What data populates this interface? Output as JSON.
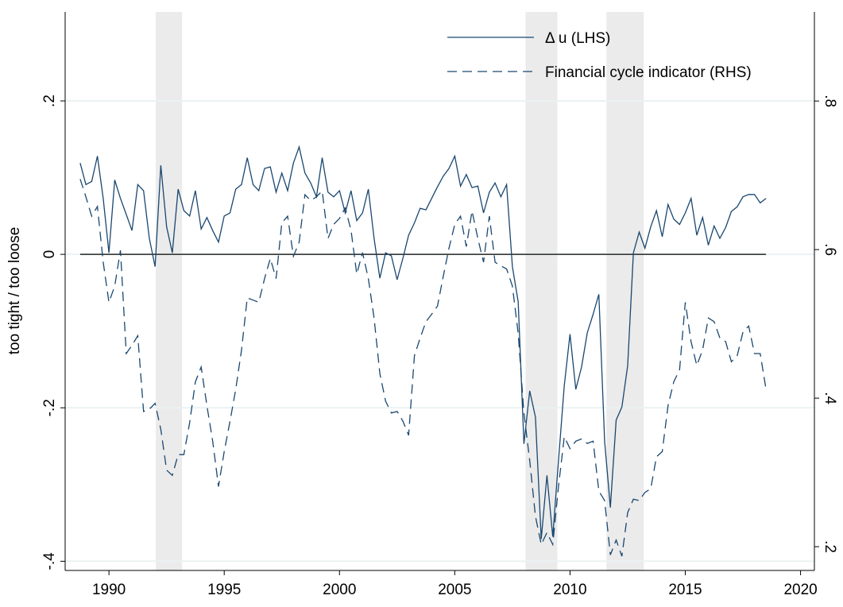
{
  "chart_data": {
    "type": "line",
    "ylabel": "too tight / too loose",
    "xlim": [
      1988.1,
      2020.6
    ],
    "xticks": [
      1990,
      1995,
      2000,
      2005,
      2010,
      2015,
      2020
    ],
    "ylim": [
      -0.412,
      0.316
    ],
    "yticks": [
      {
        "value": -0.4,
        "label": "-.4"
      },
      {
        "value": -0.2,
        "label": "-.2"
      },
      0,
      {
        "value": 0.2,
        "label": ".2"
      }
    ],
    "y2lim": [
      0.168,
      0.92
    ],
    "y2ticks": [
      {
        "value": 0.2,
        "label": ".2"
      },
      {
        "value": 0.4,
        "label": ".4"
      },
      {
        "value": 0.6,
        "label": ".6"
      },
      {
        "value": 0.8,
        "label": ".8"
      }
    ],
    "grid": true,
    "legend": "top-right",
    "shaded_periods": [
      [
        1992.03,
        1993.17
      ],
      [
        2008.07,
        2009.45
      ],
      [
        2011.58,
        2013.2
      ]
    ],
    "shade_color": "#ebebeb",
    "x": [
      1988.75,
      1989,
      1989.25,
      1989.5,
      1989.75,
      1990,
      1990.25,
      1990.5,
      1990.75,
      1991,
      1991.25,
      1991.5,
      1991.75,
      1992,
      1992.25,
      1992.5,
      1992.75,
      1993,
      1993.25,
      1993.5,
      1993.75,
      1994,
      1994.25,
      1994.5,
      1994.75,
      1995,
      1995.25,
      1995.5,
      1995.75,
      1996,
      1996.25,
      1996.5,
      1996.75,
      1997,
      1997.25,
      1997.5,
      1997.75,
      1998,
      1998.25,
      1998.5,
      1998.75,
      1999,
      1999.25,
      1999.5,
      1999.75,
      2000,
      2000.25,
      2000.5,
      2000.75,
      2001,
      2001.25,
      2001.5,
      2001.75,
      2002,
      2002.25,
      2002.5,
      2002.75,
      2003,
      2003.25,
      2003.5,
      2003.75,
      2004,
      2004.25,
      2004.5,
      2004.75,
      2005,
      2005.25,
      2005.5,
      2005.75,
      2006,
      2006.25,
      2006.5,
      2006.75,
      2007,
      2007.25,
      2007.5,
      2007.75,
      2008,
      2008.25,
      2008.5,
      2008.75,
      2009,
      2009.25,
      2009.5,
      2009.75,
      2010,
      2010.25,
      2010.5,
      2010.75,
      2011,
      2011.25,
      2011.5,
      2011.75,
      2012,
      2012.25,
      2012.5,
      2012.75,
      2013,
      2013.25,
      2013.5,
      2013.75,
      2014,
      2014.25,
      2014.5,
      2014.75,
      2015,
      2015.25,
      2015.5,
      2015.75,
      2016,
      2016.25,
      2016.5,
      2016.75,
      2017,
      2017.25,
      2017.5,
      2017.75,
      2018,
      2018.25,
      2018.5
    ],
    "series": [
      {
        "name": "Δ u (LHS)",
        "color": "#1a476f",
        "dash": false,
        "values": [
          0.119,
          0.091,
          0.095,
          0.128,
          0.073,
          0.002,
          0.097,
          0.073,
          0.052,
          0.031,
          0.091,
          0.083,
          0.021,
          -0.016,
          0.116,
          0.036,
          0.002,
          0.085,
          0.057,
          0.05,
          0.083,
          0.033,
          0.048,
          0.031,
          0.016,
          0.05,
          0.054,
          0.085,
          0.091,
          0.126,
          0.091,
          0.083,
          0.112,
          0.114,
          0.081,
          0.106,
          0.083,
          0.119,
          0.14,
          0.106,
          0.093,
          0.075,
          0.126,
          0.081,
          0.075,
          0.083,
          0.054,
          0.083,
          0.044,
          0.054,
          0.085,
          0.021,
          -0.031,
          0.002,
          -0.002,
          -0.033,
          -0.005,
          0.025,
          0.041,
          0.06,
          0.058,
          0.073,
          0.088,
          0.102,
          0.112,
          0.128,
          0.089,
          0.104,
          0.087,
          0.089,
          0.054,
          0.081,
          0.093,
          0.075,
          0.091,
          -0.016,
          -0.062,
          -0.247,
          -0.178,
          -0.212,
          -0.371,
          -0.288,
          -0.368,
          -0.269,
          -0.171,
          -0.104,
          -0.176,
          -0.147,
          -0.102,
          -0.078,
          -0.052,
          -0.244,
          -0.33,
          -0.216,
          -0.199,
          -0.145,
          0.002,
          0.029,
          0.008,
          0.036,
          0.057,
          0.023,
          0.065,
          0.046,
          0.039,
          0.054,
          0.073,
          0.025,
          0.048,
          0.012,
          0.037,
          0.021,
          0.035,
          0.056,
          0.062,
          0.075,
          0.078,
          0.078,
          0.067,
          0.073
        ]
      },
      {
        "name": "Financial cycle indicator (RHS)",
        "color": "#1a476f",
        "dash": true,
        "axis": "y2",
        "values": [
          0.695,
          0.671,
          0.645,
          0.658,
          0.583,
          0.529,
          0.551,
          0.599,
          0.46,
          0.471,
          0.484,
          0.382,
          0.385,
          0.393,
          0.358,
          0.303,
          0.296,
          0.324,
          0.324,
          0.367,
          0.422,
          0.442,
          0.39,
          0.342,
          0.281,
          0.328,
          0.369,
          0.412,
          0.465,
          0.535,
          0.532,
          0.529,
          0.561,
          0.588,
          0.561,
          0.636,
          0.645,
          0.591,
          0.61,
          0.674,
          0.666,
          0.671,
          0.679,
          0.615,
          0.634,
          0.642,
          0.656,
          0.626,
          0.567,
          0.596,
          0.561,
          0.508,
          0.433,
          0.396,
          0.38,
          0.382,
          0.369,
          0.35,
          0.457,
          0.481,
          0.503,
          0.513,
          0.524,
          0.564,
          0.602,
          0.634,
          0.645,
          0.604,
          0.652,
          0.615,
          0.583,
          0.645,
          0.583,
          0.578,
          0.574,
          0.551,
          0.487,
          0.38,
          0.316,
          0.241,
          0.203,
          0.219,
          0.203,
          0.281,
          0.348,
          0.332,
          0.342,
          0.345,
          0.339,
          0.342,
          0.275,
          0.262,
          0.189,
          0.209,
          0.187,
          0.246,
          0.264,
          0.262,
          0.273,
          0.278,
          0.321,
          0.328,
          0.39,
          0.422,
          0.438,
          0.529,
          0.476,
          0.444,
          0.465,
          0.508,
          0.503,
          0.481,
          0.476,
          0.449,
          0.457,
          0.489,
          0.497,
          0.46,
          0.46,
          0.412
        ]
      }
    ]
  }
}
